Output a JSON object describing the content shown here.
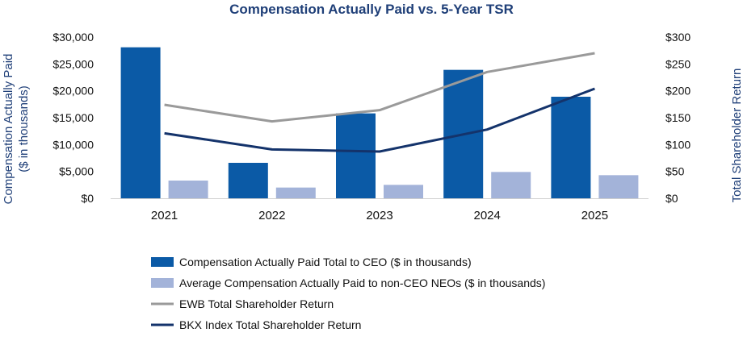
{
  "chart_data": {
    "type": "bar",
    "title": "Compensation Actually Paid vs. 5-Year TSR",
    "categories": [
      "2021",
      "2022",
      "2023",
      "2024",
      "2025"
    ],
    "ylabel_left_line1": "Compensation Actually Paid",
    "ylabel_left_line2": "($ in thousands)",
    "ylabel_right": "Total Shareholder Return",
    "ylim_left": [
      0,
      30000
    ],
    "ylim_right": [
      0,
      300
    ],
    "left_ticks": [
      {
        "value": 0,
        "label": "$0"
      },
      {
        "value": 5000,
        "label": "$5,000"
      },
      {
        "value": 10000,
        "label": "$10,000"
      },
      {
        "value": 15000,
        "label": "$15,000"
      },
      {
        "value": 20000,
        "label": "$20,000"
      },
      {
        "value": 25000,
        "label": "$25,000"
      },
      {
        "value": 30000,
        "label": "$30,000"
      }
    ],
    "right_ticks": [
      {
        "value": 0,
        "label": "$0"
      },
      {
        "value": 50,
        "label": "$50"
      },
      {
        "value": 100,
        "label": "$100"
      },
      {
        "value": 150,
        "label": "$150"
      },
      {
        "value": 200,
        "label": "$200"
      },
      {
        "value": 250,
        "label": "$250"
      },
      {
        "value": 300,
        "label": "$300"
      }
    ],
    "series": [
      {
        "name": "Compensation Actually Paid Total to CEO ($ in thousands)",
        "kind": "bar",
        "axis": "left",
        "color": "#0b5aa6",
        "values": [
          28100,
          6600,
          15800,
          23900,
          18900
        ]
      },
      {
        "name": "Average Compensation Actually Paid to non-CEO NEOs ($ in thousands)",
        "kind": "bar",
        "axis": "left",
        "color": "#a3b3d9",
        "values": [
          3300,
          2000,
          2500,
          4900,
          4300
        ]
      },
      {
        "name": "EWB Total Shareholder Return",
        "kind": "line",
        "axis": "right",
        "color": "#9a9a9a",
        "values": [
          174,
          143,
          164,
          235,
          270
        ]
      },
      {
        "name": "BKX Index Total Shareholder Return",
        "kind": "line",
        "axis": "right",
        "color": "#14336b",
        "values": [
          121,
          91,
          87,
          128,
          204
        ]
      }
    ]
  }
}
